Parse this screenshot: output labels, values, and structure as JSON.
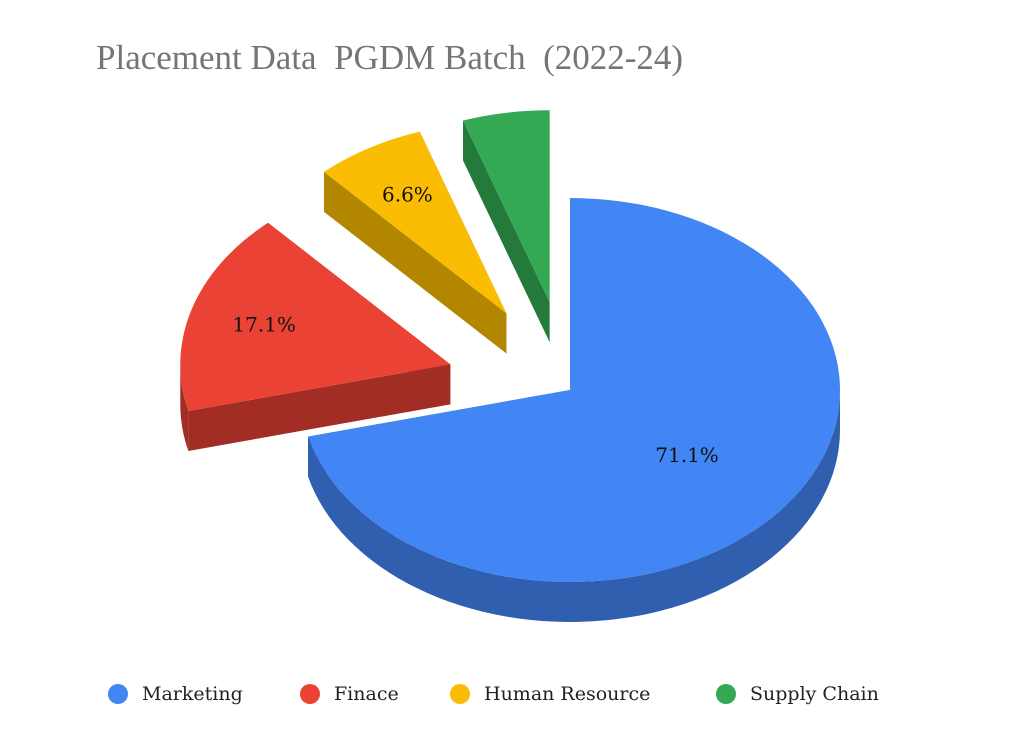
{
  "chart_data": {
    "type": "pie",
    "title": "Placement Data  PGDM Batch  (2022-24)",
    "series": [
      {
        "name": "Marketing",
        "value": 71.1,
        "label": "71.1%",
        "color": "#4285f4",
        "side_color": "#315fb0",
        "exploded": false
      },
      {
        "name": "Finace",
        "value": 17.1,
        "label": "17.1%",
        "color": "#ea4335",
        "side_color": "#a22d24",
        "exploded": true
      },
      {
        "name": "Human Resource",
        "value": 6.6,
        "label": "6.6%",
        "color": "#fbbc04",
        "side_color": "#b38600",
        "exploded": true
      },
      {
        "name": "Supply Chain",
        "value": 5.2,
        "label": "",
        "color": "#34a853",
        "side_color": "#247a3b",
        "exploded": true
      }
    ],
    "legend": {
      "position": "bottom"
    },
    "style": "3d-exploded"
  }
}
